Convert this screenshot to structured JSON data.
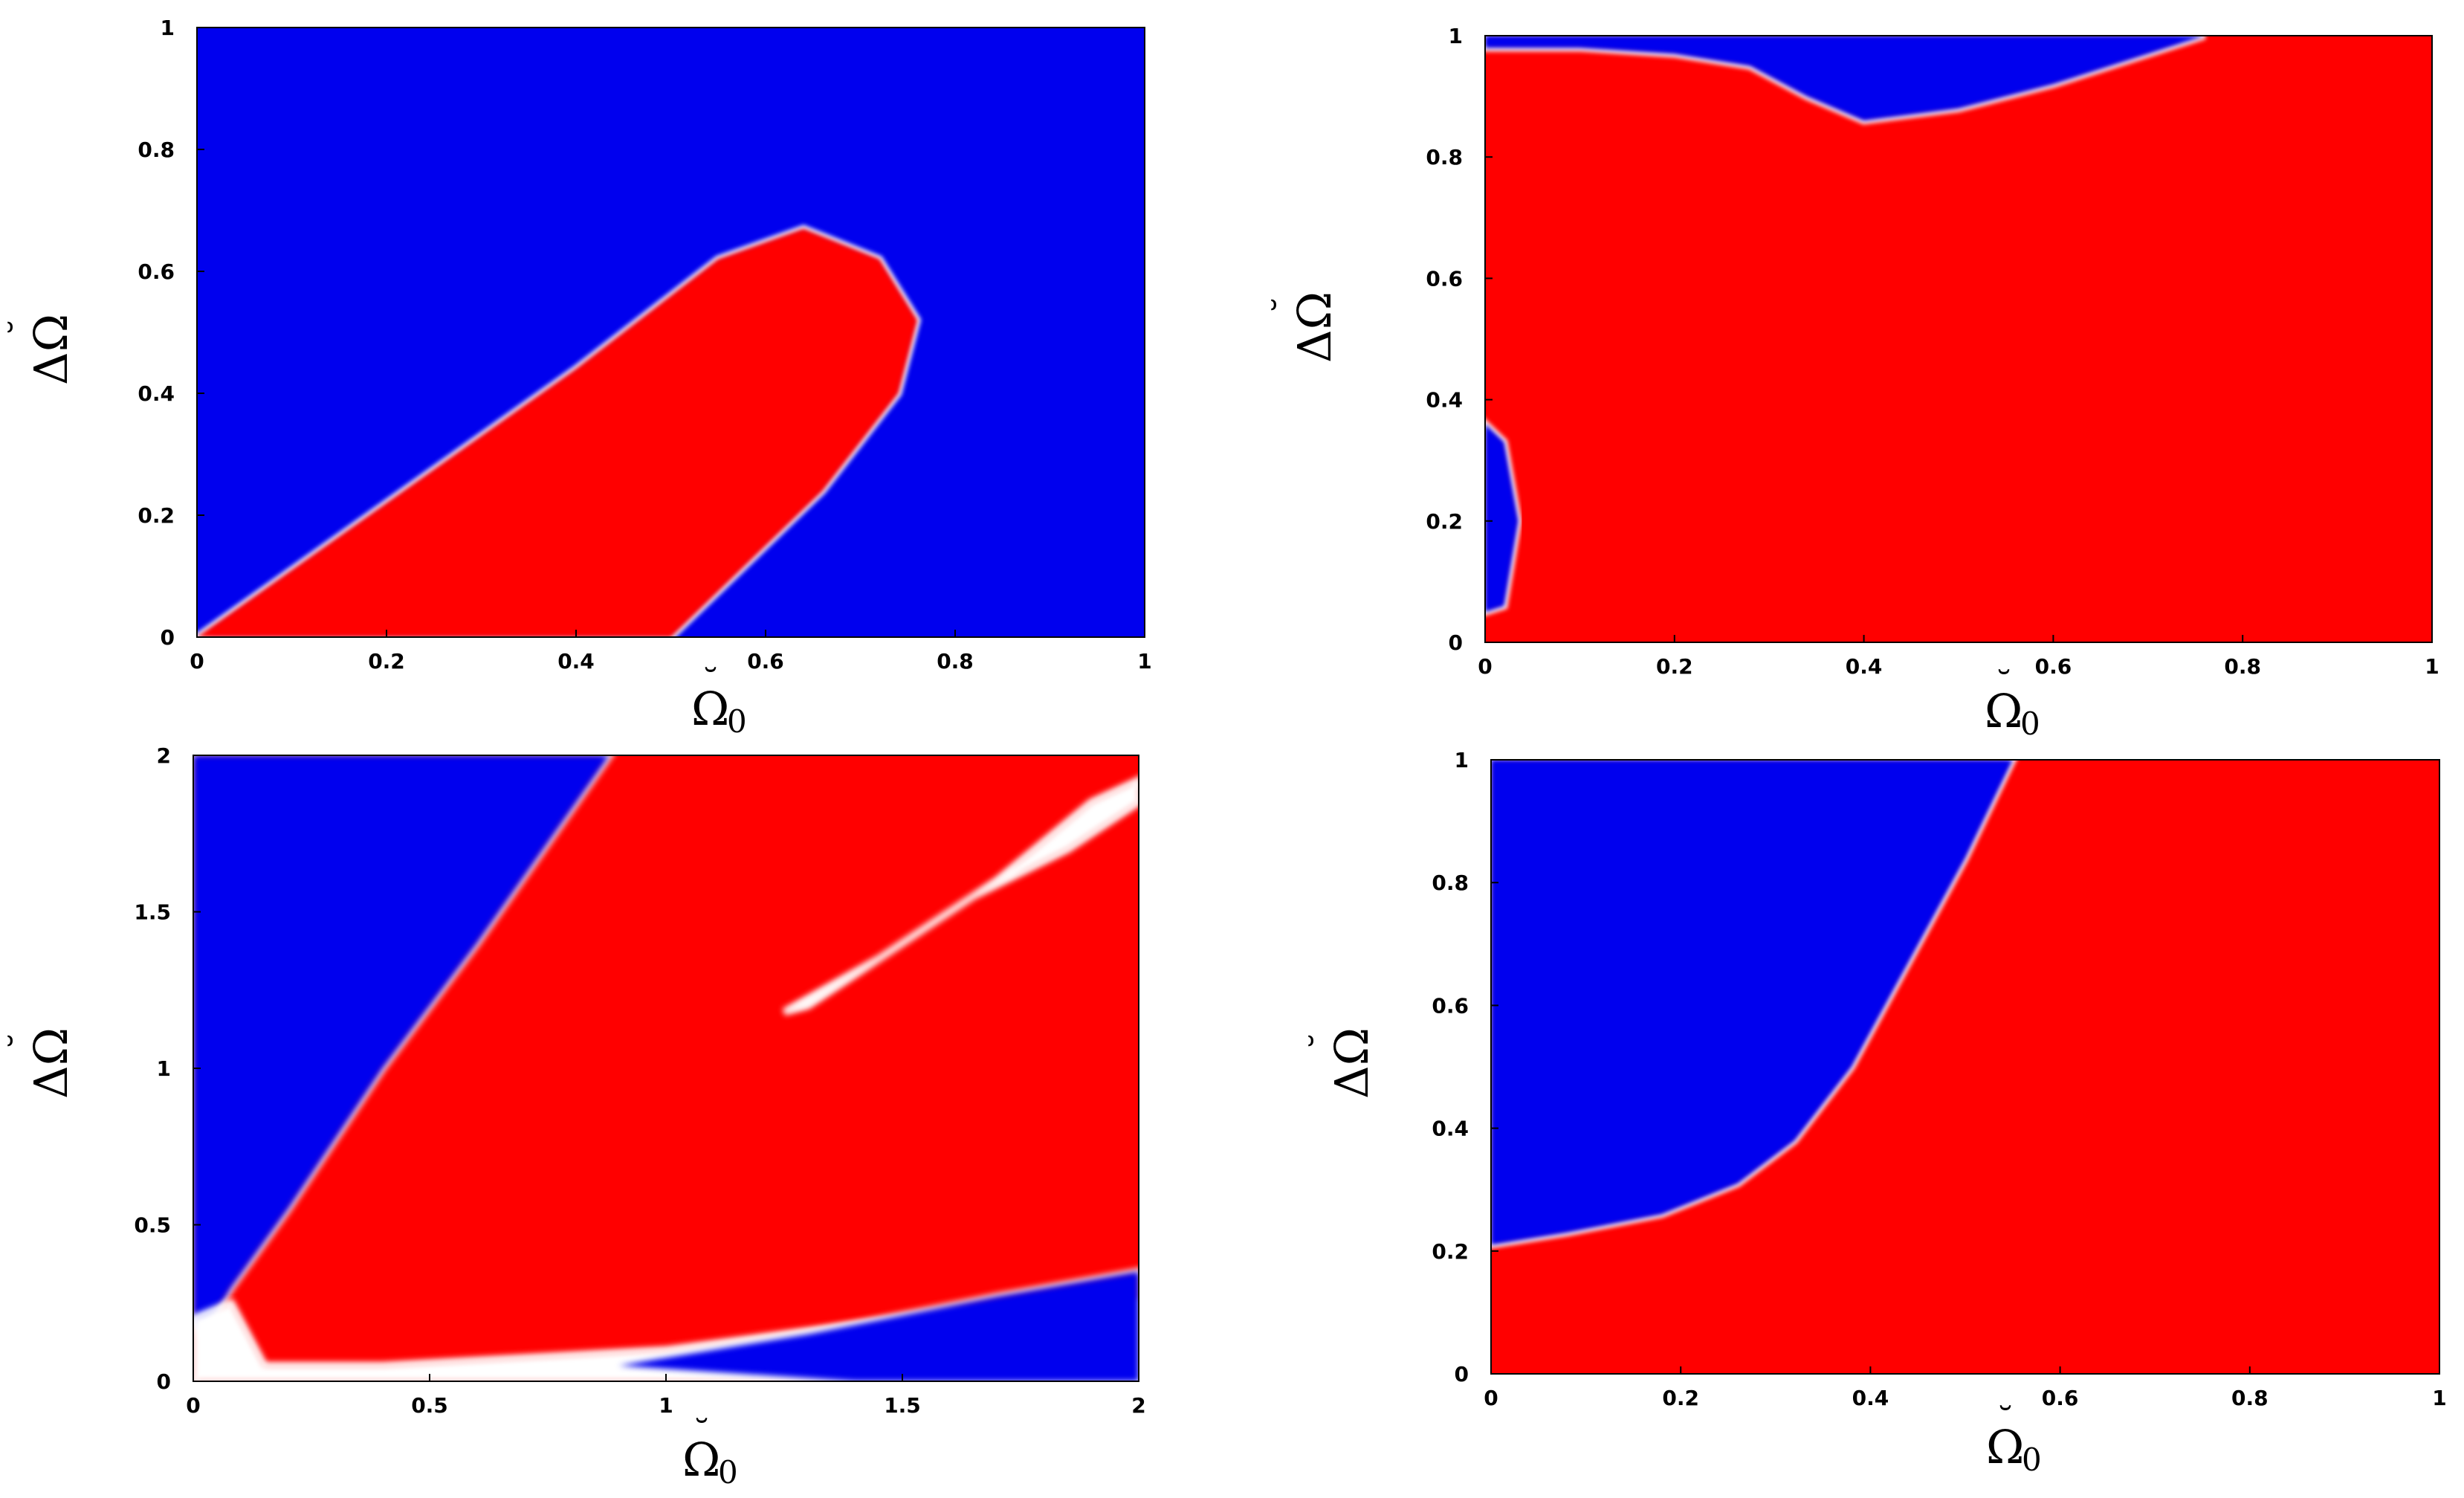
{
  "colors": {
    "blue": "#0000ee",
    "red": "#ff0000",
    "white": "#ffffff"
  },
  "chart_data": [
    {
      "type": "heatmap",
      "xlabel_main": "Ω",
      "xlabel_sub": "0",
      "xlabel_accent": "˘",
      "ylabel_main": "ΔΩ",
      "ylabel_accent": "˘",
      "xlim": [
        0,
        1
      ],
      "ylim": [
        0,
        1
      ],
      "xticks": [
        "0",
        "0.2",
        "0.4",
        "0.6",
        "0.8",
        "1"
      ],
      "yticks": [
        "0",
        "0.2",
        "0.4",
        "0.6",
        "0.8",
        "1"
      ],
      "background": "blue",
      "regions": [
        {
          "color": "red",
          "boundary": [
            [
              0,
              0
            ],
            [
              0.2,
              0.22
            ],
            [
              0.4,
              0.44
            ],
            [
              0.55,
              0.62
            ],
            [
              0.64,
              0.67
            ],
            [
              0.72,
              0.62
            ],
            [
              0.76,
              0.52
            ],
            [
              0.74,
              0.4
            ],
            [
              0.66,
              0.24
            ],
            [
              0.58,
              0.12
            ],
            [
              0.5,
              0.0
            ]
          ]
        }
      ]
    },
    {
      "type": "heatmap",
      "xlabel_main": "Ω",
      "xlabel_sub": "0",
      "xlabel_accent": "˘",
      "ylabel_main": "ΔΩ",
      "ylabel_accent": "˘",
      "xlim": [
        0,
        1
      ],
      "ylim": [
        0,
        1
      ],
      "xticks": [
        "0",
        "0.2",
        "0.4",
        "0.6",
        "0.8",
        "1"
      ],
      "yticks": [
        "0",
        "0.2",
        "0.4",
        "0.6",
        "0.8",
        "1"
      ],
      "background": "red",
      "regions": [
        {
          "color": "blue",
          "boundary": [
            [
              0.0,
              1.0
            ],
            [
              0.0,
              0.98
            ],
            [
              0.1,
              0.98
            ],
            [
              0.2,
              0.97
            ],
            [
              0.28,
              0.95
            ],
            [
              0.34,
              0.9
            ],
            [
              0.4,
              0.86
            ],
            [
              0.5,
              0.88
            ],
            [
              0.6,
              0.92
            ],
            [
              0.7,
              0.97
            ],
            [
              0.76,
              1.0
            ]
          ]
        },
        {
          "color": "blue",
          "boundary": [
            [
              0.0,
              0.36
            ],
            [
              0.02,
              0.33
            ],
            [
              0.035,
              0.2
            ],
            [
              0.02,
              0.06
            ],
            [
              0.0,
              0.05
            ]
          ]
        }
      ]
    },
    {
      "type": "heatmap",
      "xlabel_main": "Ω",
      "xlabel_sub": "0",
      "xlabel_accent": "˘",
      "ylabel_main": "ΔΩ",
      "ylabel_accent": "˘",
      "xlim": [
        0,
        2
      ],
      "ylim": [
        0,
        2
      ],
      "xticks": [
        "0",
        "0.5",
        "1",
        "1.5",
        "2"
      ],
      "yticks": [
        "0",
        "0.5",
        "1",
        "1.5",
        "2"
      ],
      "background": "red",
      "regions": [
        {
          "color": "blue",
          "boundary": [
            [
              0,
              0.2
            ],
            [
              0,
              2
            ],
            [
              0.88,
              2
            ],
            [
              0.6,
              1.4
            ],
            [
              0.4,
              1.0
            ],
            [
              0.2,
              0.55
            ],
            [
              0.08,
              0.3
            ],
            [
              0.02,
              0.15
            ]
          ]
        },
        {
          "color": "white",
          "boundary": [
            [
              0,
              0
            ],
            [
              0,
              0.2
            ],
            [
              0.08,
              0.25
            ],
            [
              0.15,
              0.05
            ],
            [
              0.4,
              0.05
            ],
            [
              1.0,
              0.1
            ],
            [
              1.6,
              0.22
            ],
            [
              2,
              0.25
            ],
            [
              2,
              0
            ]
          ]
        },
        {
          "color": "blue",
          "boundary": [
            [
              0.9,
              0.05
            ],
            [
              1.3,
              0.15
            ],
            [
              1.7,
              0.27
            ],
            [
              2,
              0.35
            ],
            [
              2,
              0.0
            ],
            [
              1.4,
              0.0
            ]
          ]
        },
        {
          "color": "white",
          "boundary": [
            [
              1.25,
              1.18
            ],
            [
              1.45,
              1.35
            ],
            [
              1.7,
              1.6
            ],
            [
              1.9,
              1.85
            ],
            [
              2,
              1.92
            ],
            [
              2,
              1.85
            ],
            [
              1.85,
              1.7
            ],
            [
              1.65,
              1.55
            ],
            [
              1.4,
              1.3
            ],
            [
              1.3,
              1.2
            ]
          ]
        }
      ]
    },
    {
      "type": "heatmap",
      "xlabel_main": "Ω",
      "xlabel_sub": "0",
      "xlabel_accent": "˘",
      "ylabel_main": "ΔΩ",
      "ylabel_accent": "˘",
      "xlim": [
        0,
        1
      ],
      "ylim": [
        0,
        1
      ],
      "xticks": [
        "0",
        "0.2",
        "0.4",
        "0.6",
        "0.8",
        "1"
      ],
      "yticks": [
        "0",
        "0.2",
        "0.4",
        "0.6",
        "0.8",
        "1"
      ],
      "background": "red",
      "regions": [
        {
          "color": "blue",
          "boundary": [
            [
              0.0,
              1.0
            ],
            [
              0.0,
              0.21
            ],
            [
              0.08,
              0.23
            ],
            [
              0.18,
              0.26
            ],
            [
              0.26,
              0.31
            ],
            [
              0.32,
              0.38
            ],
            [
              0.38,
              0.5
            ],
            [
              0.44,
              0.67
            ],
            [
              0.5,
              0.84
            ],
            [
              0.55,
              1.0
            ]
          ]
        }
      ]
    }
  ]
}
